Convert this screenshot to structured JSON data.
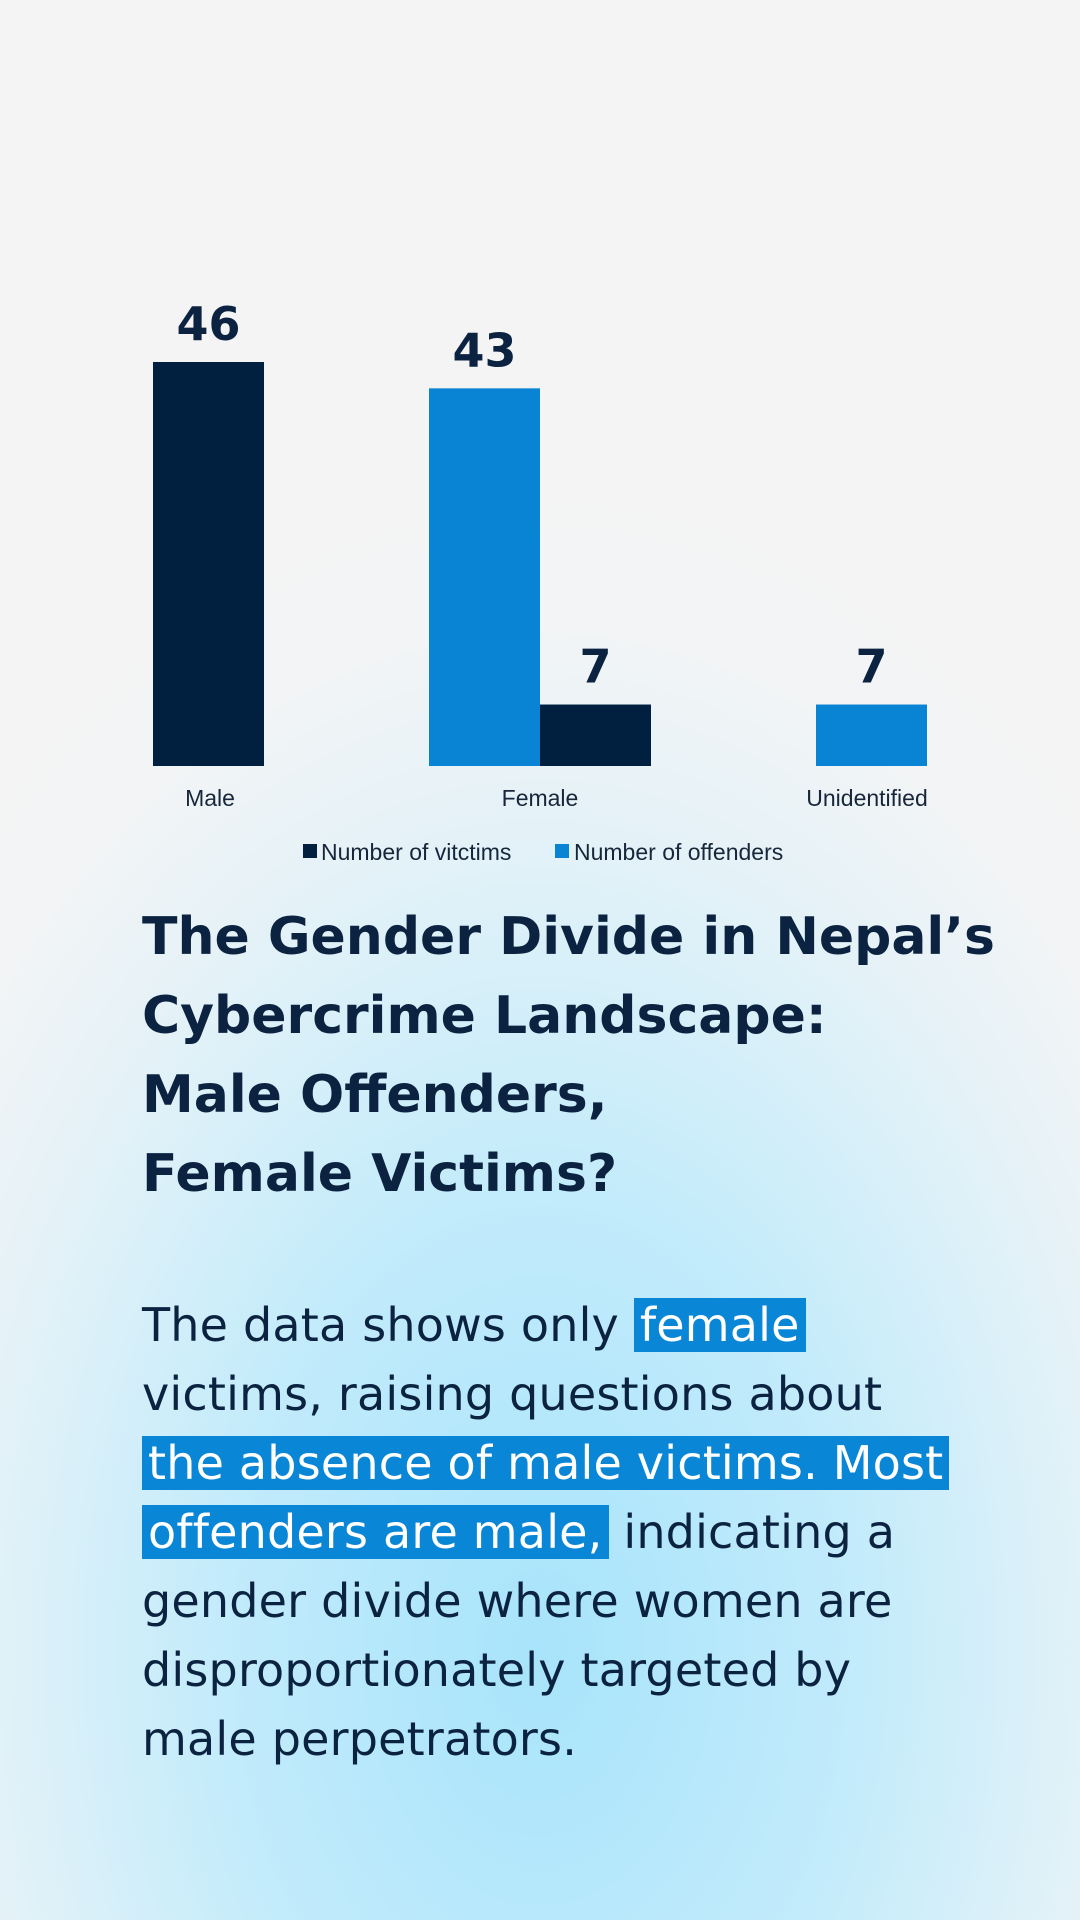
{
  "chart_data": {
    "type": "bar",
    "categories": [
      "Male",
      "Female",
      "Unidentified"
    ],
    "series": [
      {
        "name": "Number of vitctims",
        "color": "#011f3e",
        "values": [
          46,
          7,
          null
        ]
      },
      {
        "name": "Number of offenders",
        "color": "#0984d5",
        "values": [
          null,
          43,
          7
        ]
      }
    ],
    "bar_order": [
      {
        "category": "Male",
        "series": 0,
        "value": 46
      },
      {
        "category": "Female",
        "series": 1,
        "value": 43
      },
      {
        "category": "Female",
        "series": 0,
        "value": 7
      },
      {
        "category": "Unidentified",
        "series": 1,
        "value": 7
      }
    ],
    "ylim": [
      0,
      46
    ],
    "grid": false,
    "legend_position": "bottom-center"
  },
  "legend": {
    "victims": "Number of vitctims",
    "offenders": "Number of offenders"
  },
  "title": {
    "line1": "The Gender Divide in Nepal’s",
    "line2": "Cybercrime Landscape:",
    "line3": "Male Offenders,",
    "line4": "Female Victims?"
  },
  "body": {
    "l1_a": "The data shows only ",
    "l1_hl": "female",
    "l2": "victims, raising questions about",
    "l3_hl": "the absence of male victims. Most",
    "l4_hl": "offenders are male,",
    "l4_b": " indicating a",
    "l5": "gender divide where women are",
    "l6": "disproportionately targeted by",
    "l7": "male perpetrators."
  }
}
